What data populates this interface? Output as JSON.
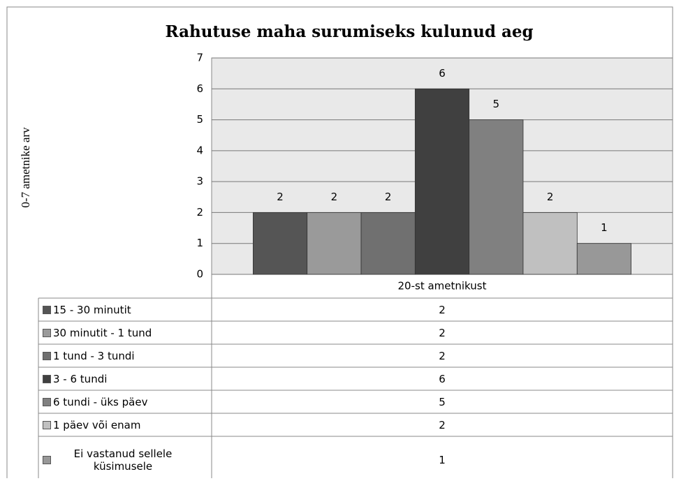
{
  "chart_data": {
    "type": "bar",
    "title": "Rahutuse maha surumiseks kulunud aeg",
    "y_label": "0-7 ametnike arv",
    "categories": [
      "20-st ametnikust"
    ],
    "series": [
      {
        "name": "15 - 30 minutit",
        "color": "#555555",
        "values": [
          2
        ]
      },
      {
        "name": "30 minutit - 1 tund",
        "color": "#9a9a9a",
        "values": [
          2
        ]
      },
      {
        "name": "1 tund - 3 tundi",
        "color": "#707070",
        "values": [
          2
        ]
      },
      {
        "name": "3 - 6 tundi",
        "color": "#404040",
        "values": [
          6
        ]
      },
      {
        "name": "6 tundi - üks päev",
        "color": "#808080",
        "values": [
          5
        ]
      },
      {
        "name": "1 päev või enam",
        "color": "#c0c0c0",
        "values": [
          2
        ]
      },
      {
        "name": "Ei vastanud sellele küsimusele",
        "color": "#989898",
        "values": [
          1
        ]
      }
    ],
    "ylim": [
      0,
      7
    ],
    "yticks": [
      0,
      1,
      2,
      3,
      4,
      5,
      6,
      7
    ],
    "grid": true
  }
}
